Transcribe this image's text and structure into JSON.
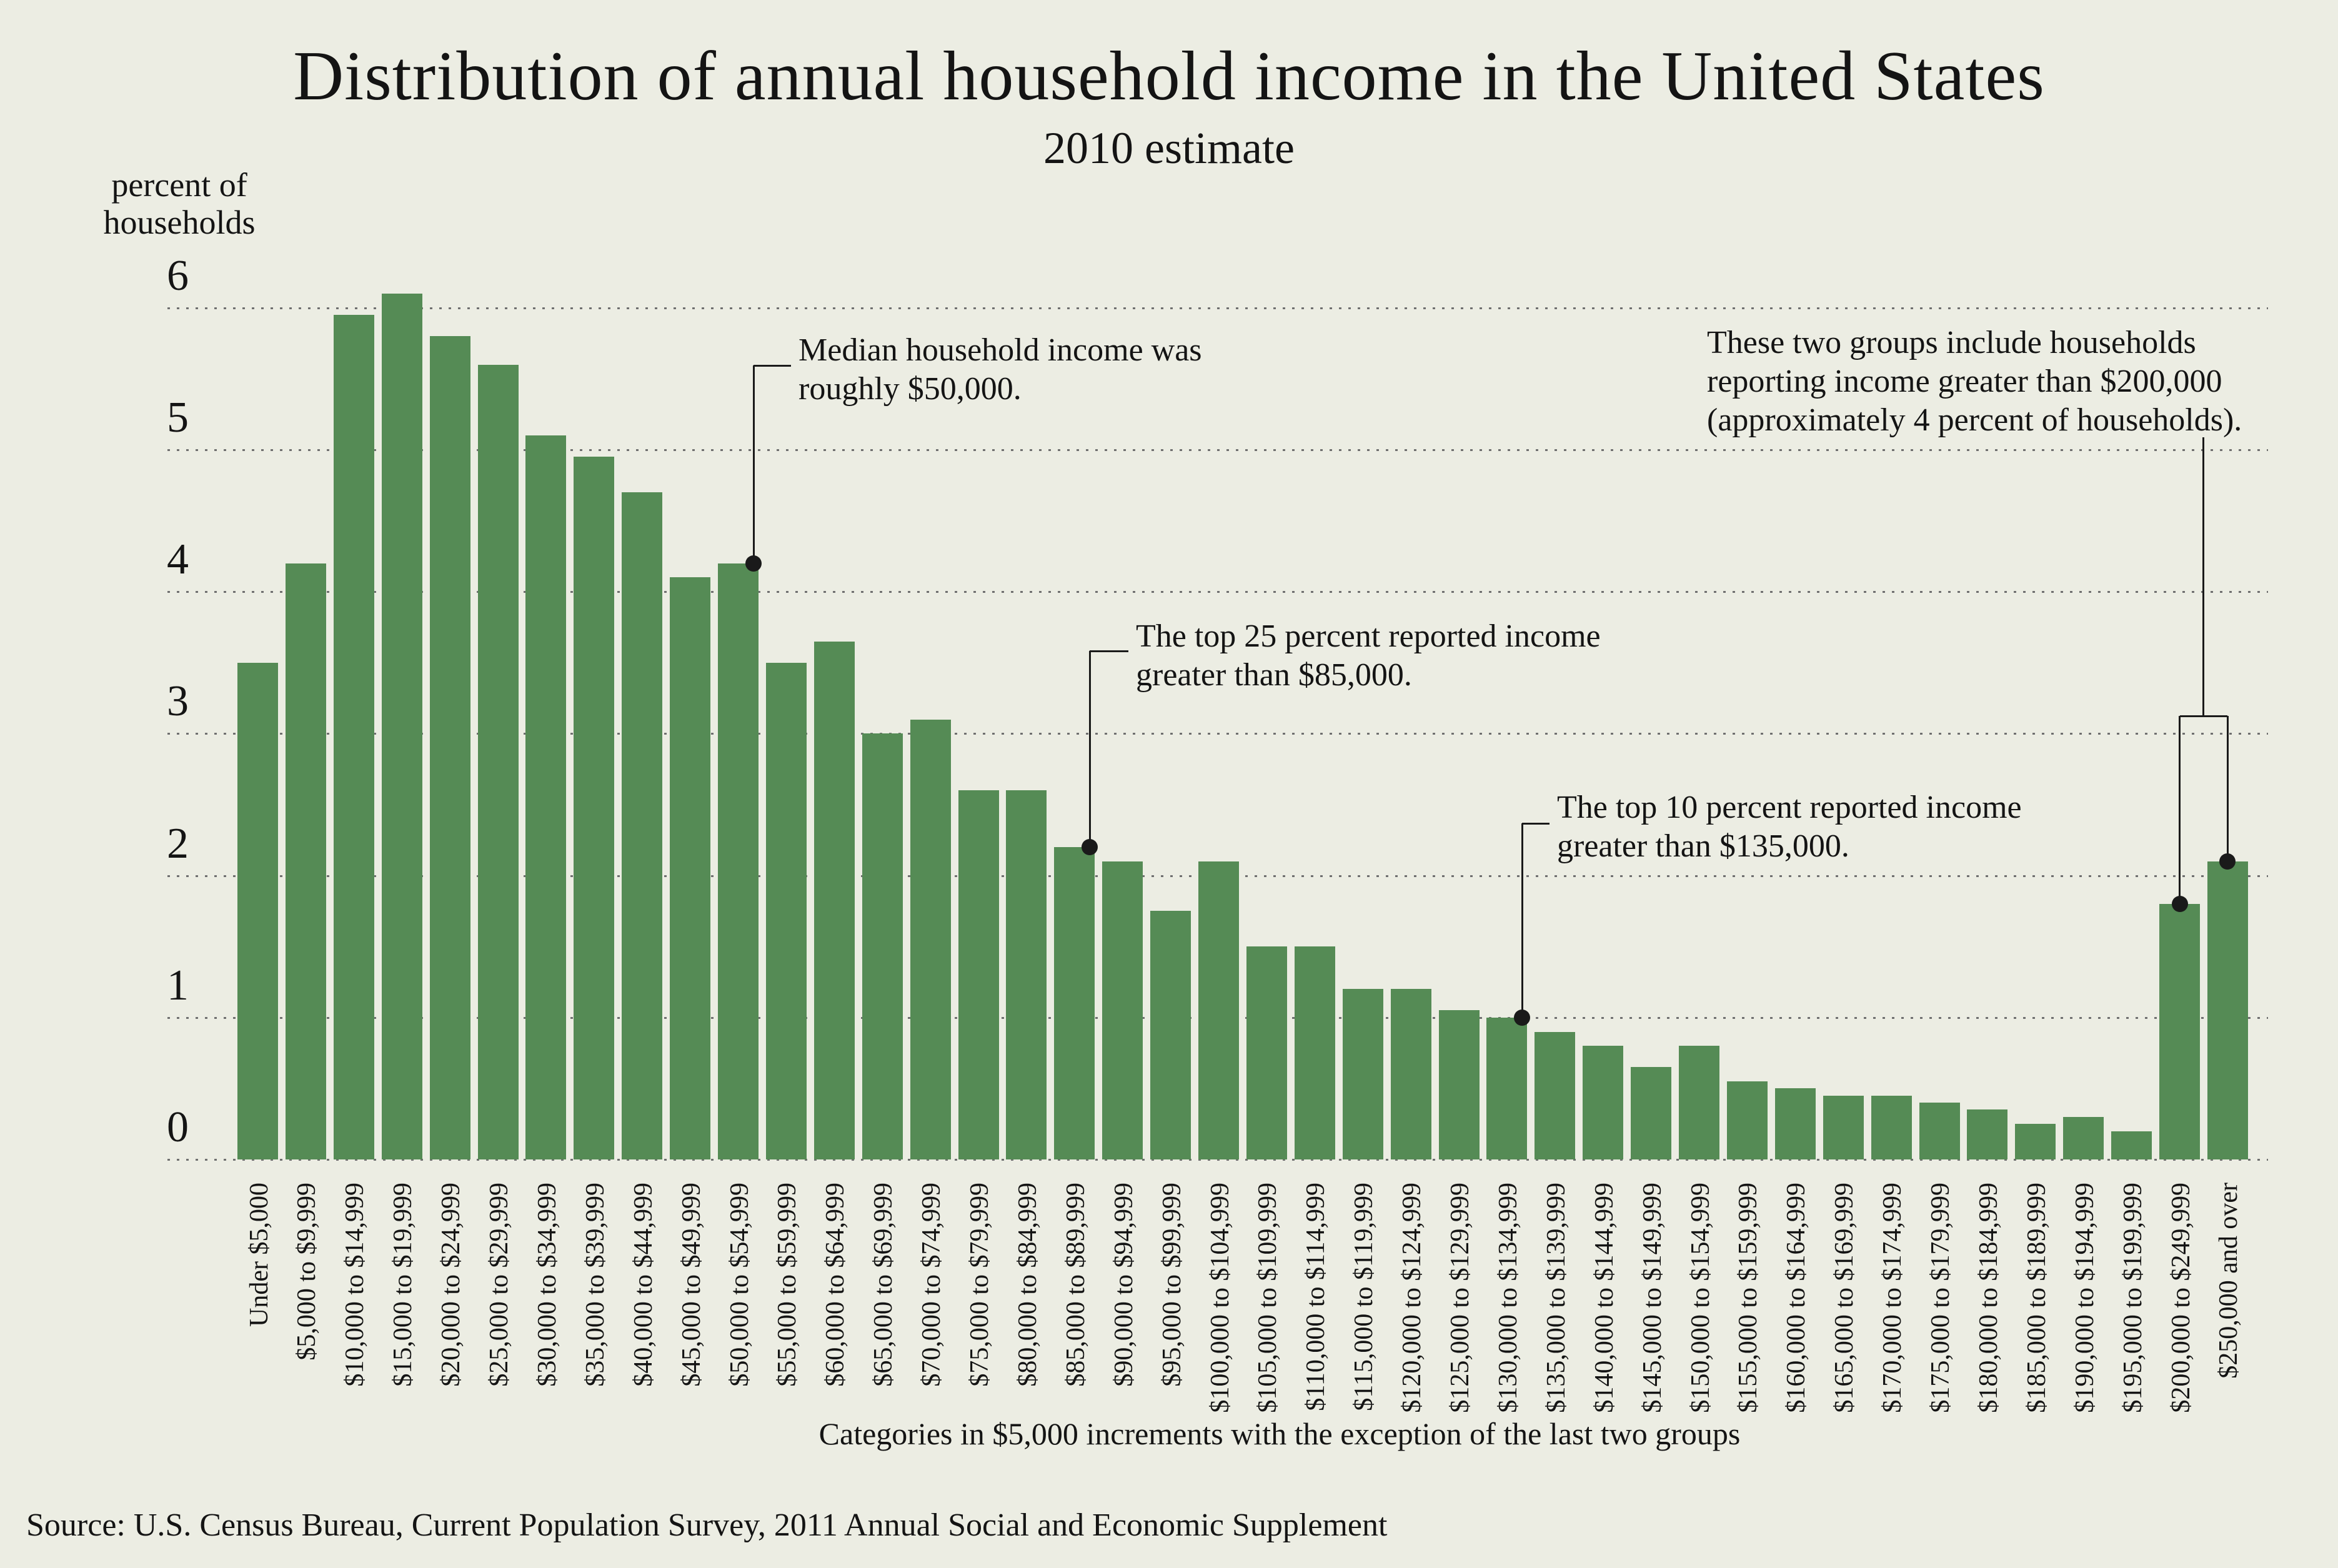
{
  "title": "Distribution of annual household income in the United States",
  "subtitle": "2010 estimate",
  "y_axis": {
    "label_lines": [
      "percent of",
      "households"
    ],
    "ticks": [
      "0",
      "1",
      "2",
      "3",
      "4",
      "5",
      "6"
    ]
  },
  "x_axis": {
    "caption": "Categories in $5,000 increments with the exception of the last two groups"
  },
  "source": "Source: U.S. Census Bureau, Current Population Survey, 2011 Annual Social and Economic Supplement",
  "colors": {
    "background": "#ECEDE3",
    "bar": "#558B55",
    "grid_dots": "#6F6F6F",
    "text": "#141414",
    "annotation_line": "#1A1A1A"
  },
  "chart_data": {
    "type": "bar",
    "title": "Distribution of annual household income in the United States",
    "subtitle": "2010 estimate",
    "xlabel": "Categories in $5,000 increments with the exception of the last two groups",
    "ylabel": "percent of households",
    "ylim": [
      0,
      6.5
    ],
    "yticks": [
      0,
      1,
      2,
      3,
      4,
      5,
      6
    ],
    "grid": "horizontal dotted",
    "legend": "none",
    "categories": [
      "Under $5,000",
      "$5,000 to $9,999",
      "$10,000 to $14,999",
      "$15,000 to $19,999",
      "$20,000 to $24,999",
      "$25,000 to $29,999",
      "$30,000 to $34,999",
      "$35,000 to $39,999",
      "$40,000 to $44,999",
      "$45,000 to $49,999",
      "$50,000 to $54,999",
      "$55,000 to $59,999",
      "$60,000 to $64,999",
      "$65,000 to $69,999",
      "$70,000 to $74,999",
      "$75,000 to $79,999",
      "$80,000 to $84,999",
      "$85,000 to $89,999",
      "$90,000 to $94,999",
      "$95,000 to $99,999",
      "$100,000 to $104,999",
      "$105,000 to $109,999",
      "$110,000 to $114,999",
      "$115,000 to $119,999",
      "$120,000 to $124,999",
      "$125,000 to $129,999",
      "$130,000 to $134,999",
      "$135,000 to $139,999",
      "$140,000 to $144,999",
      "$145,000 to $149,999",
      "$150,000 to $154,999",
      "$155,000 to $159,999",
      "$160,000 to $164,999",
      "$165,000 to $169,999",
      "$170,000 to $174,999",
      "$175,000 to $179,999",
      "$180,000 to $184,999",
      "$185,000 to $189,999",
      "$190,000 to $194,999",
      "$195,000 to $199,999",
      "$200,000 to $249,999",
      "$250,000 and over"
    ],
    "values": [
      3.5,
      4.2,
      5.95,
      6.1,
      5.8,
      5.6,
      5.1,
      4.95,
      4.7,
      4.1,
      4.2,
      3.5,
      3.65,
      3.0,
      3.1,
      2.6,
      2.6,
      2.2,
      2.1,
      1.75,
      2.1,
      1.5,
      1.5,
      1.2,
      1.2,
      1.05,
      1.0,
      0.9,
      0.8,
      0.65,
      0.8,
      0.55,
      0.5,
      0.45,
      0.45,
      0.4,
      0.35,
      0.25,
      0.3,
      0.2,
      1.8,
      2.1
    ],
    "annotations": [
      {
        "id": "median",
        "lines": [
          "Median household income was",
          "roughly $50,000."
        ],
        "target_category": "$50,000 to $54,999",
        "target_value": 4.2
      },
      {
        "id": "top25",
        "lines": [
          "The top 25 percent reported income",
          "greater than $85,000."
        ],
        "target_category": "$85,000 to $89,999",
        "target_value": 2.2
      },
      {
        "id": "top10",
        "lines": [
          "The top 10 percent reported income",
          "greater than $135,000."
        ],
        "target_category": "$130,000 to $134,999",
        "target_value": 1.0
      },
      {
        "id": "over200k",
        "lines": [
          "These two groups include households",
          "reporting income greater than $200,000",
          "(approximately 4 percent of households)."
        ],
        "target_categories": [
          "$200,000 to $249,999",
          "$250,000 and over"
        ],
        "target_values": [
          1.8,
          2.1
        ]
      }
    ]
  }
}
